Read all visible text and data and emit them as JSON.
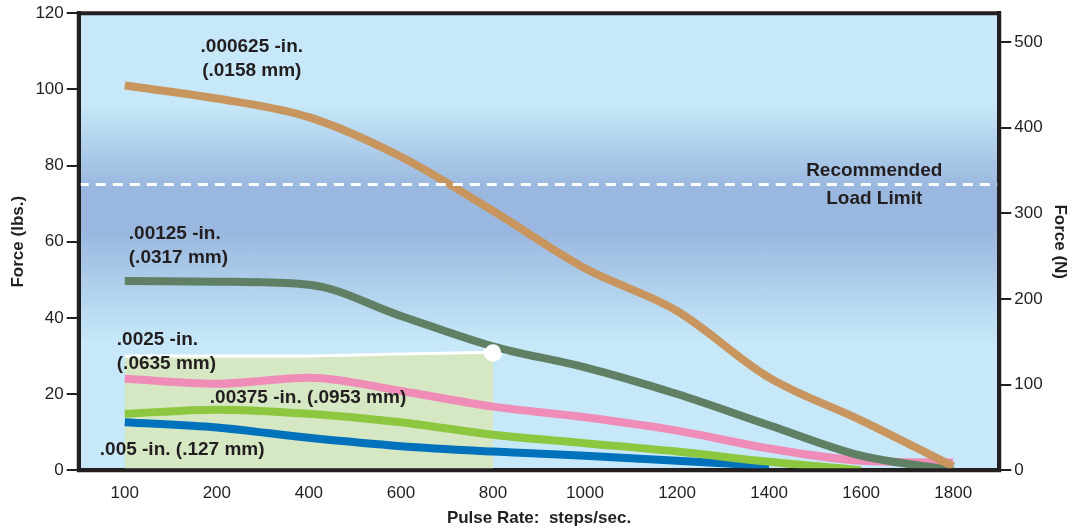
{
  "chart_data": {
    "type": "line",
    "xlabel": "Pulse Rate:  steps/sec.",
    "ylabel": "Force (lbs.)",
    "y2label": "Force (N)",
    "categories": [
      "100",
      "200",
      "400",
      "600",
      "800",
      "1000",
      "1200",
      "1400",
      "1600",
      "1800"
    ],
    "ylim": [
      0,
      120
    ],
    "yticks": [
      0,
      20,
      40,
      60,
      80,
      100,
      120
    ],
    "y2lim": [
      0,
      533.8
    ],
    "y2ticks": [
      0,
      100,
      200,
      300,
      400,
      500
    ],
    "grid": false,
    "legend": false,
    "marker": "none",
    "line_style": "solid",
    "ref_lines": [
      {
        "axis": "y",
        "value": 75,
        "label": "Recommended Load Limit",
        "color": "#ffffff",
        "line_style": "dashed"
      }
    ],
    "series": [
      {
        "name": ".000625 -in. (.0158 mm)",
        "color": "#c8955e",
        "values": [
          101,
          97.6,
          92.7,
          82.3,
          68.1,
          53,
          41.8,
          24.3,
          13.1,
          1
        ]
      },
      {
        "name": ".00125 -in. (.0317 mm)",
        "color": "#5f8065",
        "values": [
          49.7,
          49.5,
          48.7,
          40.5,
          32.5,
          27,
          20,
          11.8,
          3.8,
          0
        ]
      },
      {
        "name": ".0025 -in. (.0635 mm)",
        "color": "#f08cb8",
        "values": [
          24,
          22.7,
          24.3,
          20.8,
          16.7,
          13.9,
          10.4,
          5.7,
          2.5,
          2
        ]
      },
      {
        "name": ".00375 -in. (.0953 mm)",
        "color": "#8dc63f",
        "values": [
          14.8,
          15.9,
          14.8,
          12.6,
          9.3,
          7.1,
          4.9,
          2.2,
          0,
          null
        ]
      },
      {
        "name": ".005 -in. (.127 mm)",
        "color": "#0072bc",
        "values": [
          12.6,
          11.2,
          8.5,
          6.3,
          4.9,
          3.8,
          2.5,
          1.1,
          null,
          null
        ]
      },
      {
        "type": "area",
        "color": "#d6e7c4",
        "values": [
          30,
          30,
          30,
          30.5,
          31,
          null,
          null,
          null,
          null,
          null
        ]
      }
    ]
  }
}
